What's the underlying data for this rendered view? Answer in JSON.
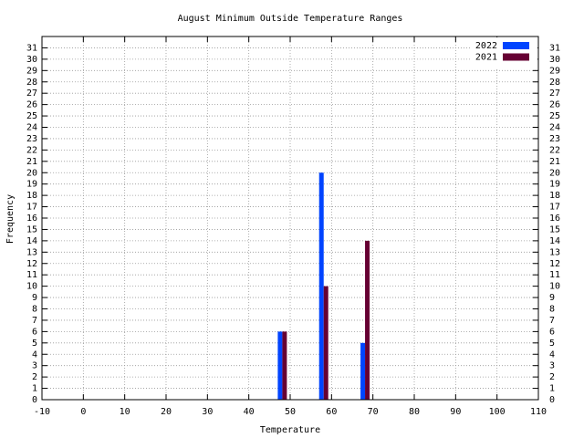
{
  "chart_data": {
    "type": "bar",
    "title": "August Minimum Outside Temperature Ranges",
    "x_label": "Temperature",
    "y_label": "Frequency",
    "x": [
      47,
      57,
      67
    ],
    "series": [
      {
        "name": "2022",
        "color": "#0044ff",
        "values": [
          6,
          20,
          5
        ]
      },
      {
        "name": "2021",
        "color": "#660033",
        "values": [
          6,
          10,
          14
        ]
      }
    ],
    "xlim": [
      -10,
      110
    ],
    "xticks": [
      -10,
      0,
      10,
      20,
      30,
      40,
      50,
      60,
      70,
      80,
      90,
      100,
      110
    ],
    "ylim": [
      0,
      32
    ],
    "yticks": [
      0,
      1,
      2,
      3,
      4,
      5,
      6,
      7,
      8,
      9,
      10,
      11,
      12,
      13,
      14,
      15,
      16,
      17,
      18,
      19,
      20,
      21,
      22,
      23,
      24,
      25,
      26,
      27,
      28,
      29,
      30,
      31
    ],
    "grid": true,
    "legend": "top-right"
  }
}
